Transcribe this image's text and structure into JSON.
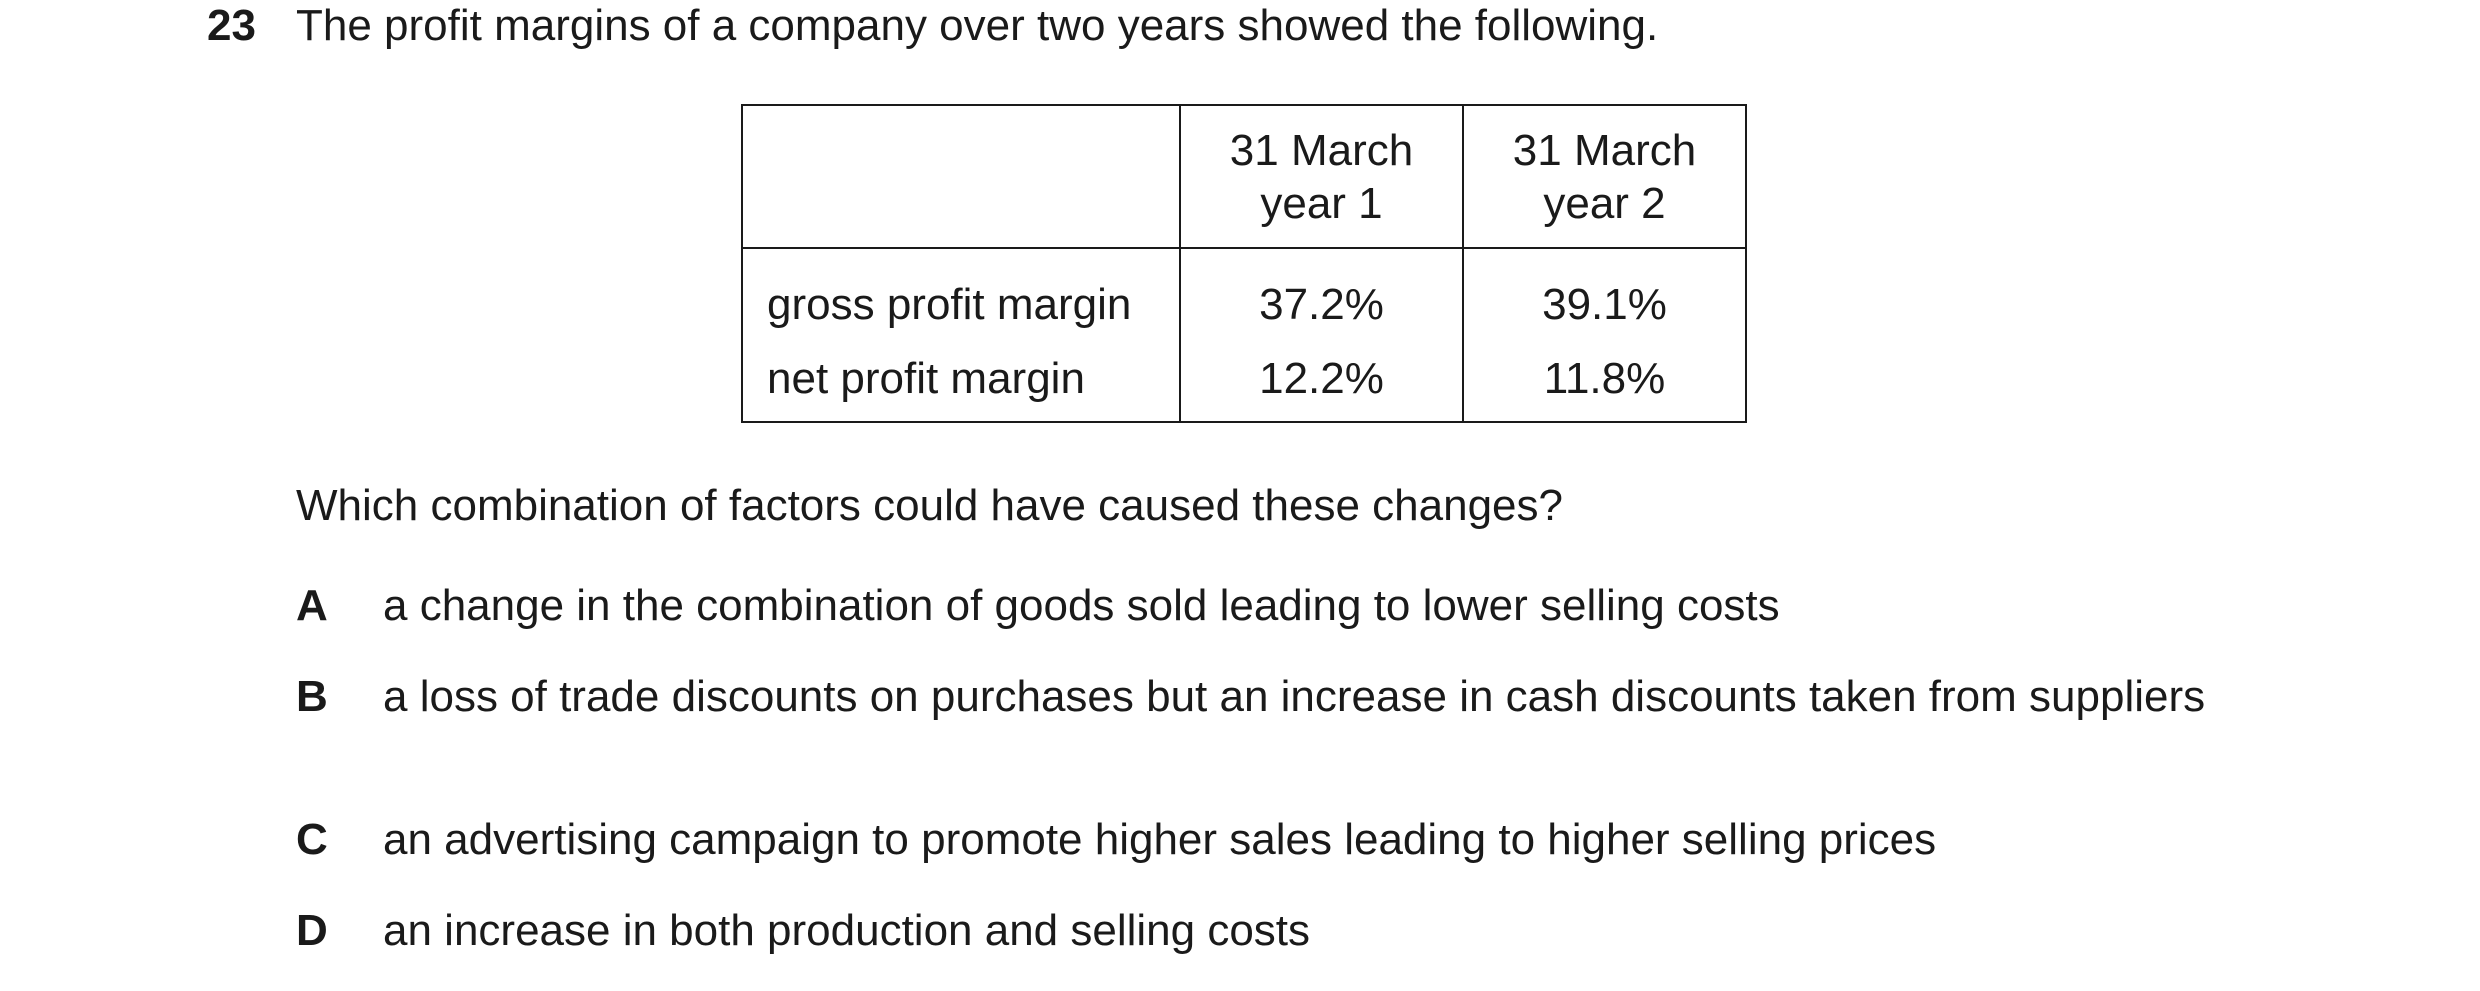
{
  "question": {
    "number": "23",
    "stem": "The profit margins of a company over two years showed the following.",
    "prompt": "Which combination of factors could have caused these changes?"
  },
  "table": {
    "headers": [
      "",
      "31 March year 1",
      "31 March year 2"
    ],
    "header_lines": {
      "col1": [
        "31 March",
        "year 1"
      ],
      "col2": [
        "31 March",
        "year 2"
      ]
    },
    "rows": [
      {
        "label": "gross profit margin",
        "year1": "37.2%",
        "year2": "39.1%"
      },
      {
        "label": "net profit margin",
        "year1": "12.2%",
        "year2": "11.8%"
      }
    ]
  },
  "options": [
    {
      "letter": "A",
      "text": "a change in the combination of goods sold leading to lower selling costs"
    },
    {
      "letter": "B",
      "text": "a loss of trade discounts on purchases but an increase in cash discounts taken from suppliers"
    },
    {
      "letter": "C",
      "text": "an advertising campaign to promote higher sales leading to higher selling prices"
    },
    {
      "letter": "D",
      "text": "an increase in both production and selling costs"
    }
  ]
}
